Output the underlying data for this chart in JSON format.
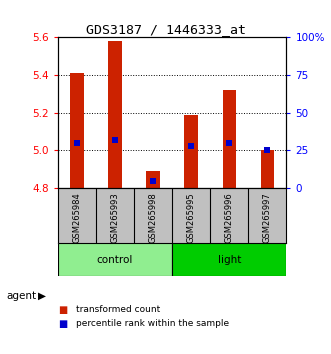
{
  "title": "GDS3187 / 1446333_at",
  "samples": [
    "GSM265984",
    "GSM265993",
    "GSM265998",
    "GSM265995",
    "GSM265996",
    "GSM265997"
  ],
  "bar_bottoms": [
    4.8,
    4.8,
    4.8,
    4.8,
    4.8,
    4.8
  ],
  "bar_tops": [
    5.41,
    5.58,
    4.89,
    5.19,
    5.32,
    5.0
  ],
  "percentile_values": [
    30,
    32,
    5,
    28,
    30,
    25
  ],
  "ylim_left": [
    4.8,
    5.6
  ],
  "ylim_right": [
    0,
    100
  ],
  "yticks_left": [
    4.8,
    5.0,
    5.2,
    5.4,
    5.6
  ],
  "yticks_right": [
    0,
    25,
    50,
    75,
    100
  ],
  "ytick_labels_right": [
    "0",
    "25",
    "50",
    "75",
    "100%"
  ],
  "groups": [
    {
      "label": "control",
      "indices": [
        0,
        1,
        2
      ],
      "color": "#90EE90"
    },
    {
      "label": "light",
      "indices": [
        3,
        4,
        5
      ],
      "color": "#00CC00"
    }
  ],
  "bar_color": "#CC2200",
  "marker_color": "#0000CC",
  "bg_color": "#FFFFFF",
  "plot_bg_color": "#FFFFFF",
  "tick_label_area_color": "#C0C0C0",
  "agent_label": "agent",
  "legend_items": [
    {
      "label": "transformed count",
      "color": "#CC2200"
    },
    {
      "label": "percentile rank within the sample",
      "color": "#0000CC"
    }
  ]
}
